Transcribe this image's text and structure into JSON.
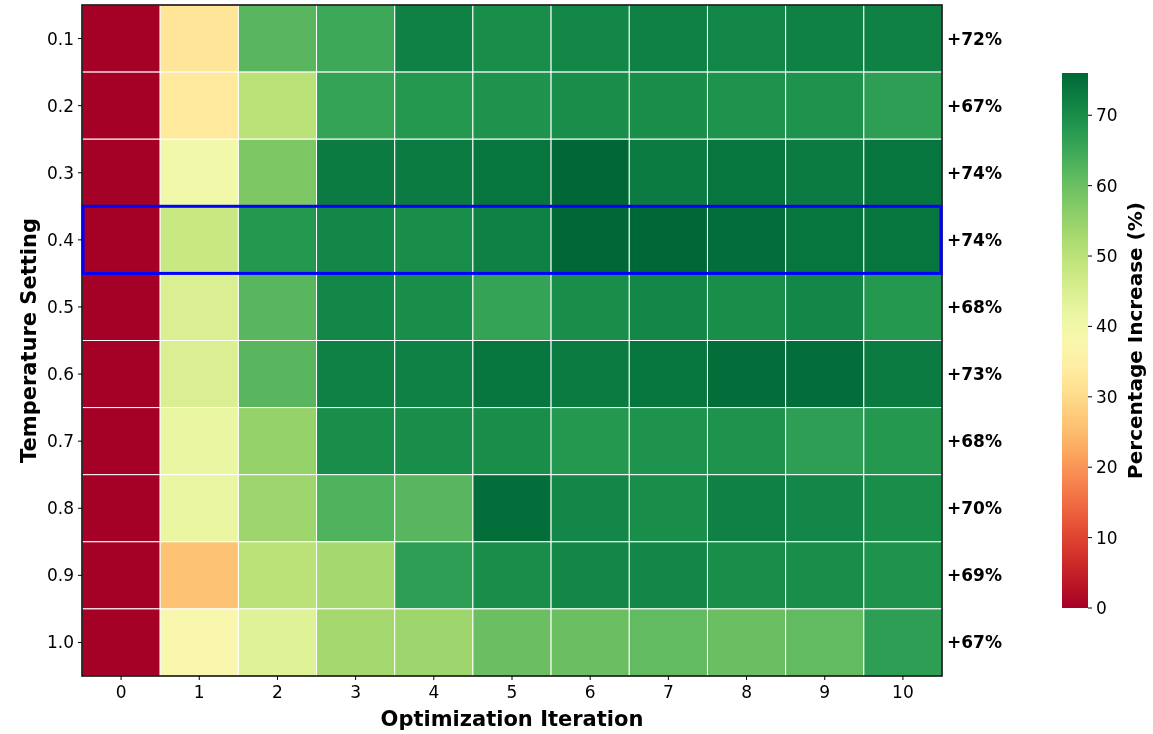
{
  "chart_data": {
    "type": "heatmap",
    "xlabel": "Optimization Iteration",
    "ylabel": "Temperature Setting",
    "clabel": "Percentage Increase (%)",
    "categories": [
      "0",
      "1",
      "2",
      "3",
      "4",
      "5",
      "6",
      "7",
      "8",
      "9",
      "10"
    ],
    "y_categories": [
      "0.1",
      "0.2",
      "0.3",
      "0.4",
      "0.5",
      "0.6",
      "0.7",
      "0.8",
      "0.9",
      "1.0"
    ],
    "y2_categories": [
      "+72%",
      "+67%",
      "+74%",
      "+74%",
      "+68%",
      "+73%",
      "+68%",
      "+70%",
      "+69%",
      "+67%"
    ],
    "cells": [
      [
        0,
        32,
        62,
        65,
        72,
        70,
        71,
        72,
        71,
        72,
        72
      ],
      [
        0,
        33,
        50,
        66,
        68,
        69,
        70,
        70,
        69,
        69,
        67
      ],
      [
        0,
        40,
        58,
        73,
        73,
        74,
        76,
        73,
        74,
        73,
        74
      ],
      [
        0,
        48,
        68,
        71,
        70,
        72,
        76,
        76,
        75,
        74,
        74
      ],
      [
        0,
        45,
        62,
        71,
        70,
        66,
        70,
        71,
        70,
        71,
        68
      ],
      [
        0,
        45,
        62,
        72,
        72,
        74,
        73,
        74,
        75,
        75,
        73
      ],
      [
        0,
        42,
        55,
        70,
        70,
        70,
        68,
        69,
        69,
        67,
        68
      ],
      [
        0,
        42,
        54,
        63,
        62,
        75,
        71,
        70,
        72,
        71,
        70
      ],
      [
        0,
        26,
        50,
        53,
        67,
        70,
        71,
        71,
        70,
        70,
        69
      ],
      [
        0,
        38,
        44,
        53,
        54,
        60,
        60,
        61,
        60,
        61,
        67
      ]
    ],
    "clim": [
      0,
      76
    ],
    "cticks": [
      0,
      10,
      20,
      30,
      40,
      50,
      60,
      70
    ]
  }
}
